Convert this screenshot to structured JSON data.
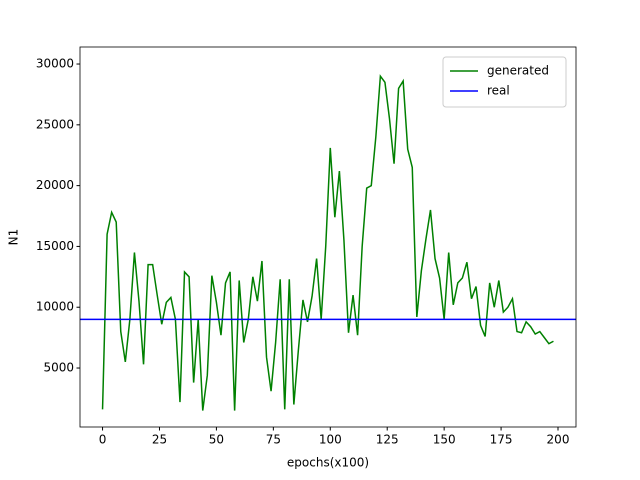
{
  "chart_data": {
    "type": "line",
    "xlabel": "epochs(x100)",
    "ylabel": "N1",
    "x": [
      0,
      2,
      4,
      6,
      8,
      10,
      12,
      14,
      16,
      18,
      20,
      22,
      24,
      26,
      28,
      30,
      32,
      34,
      36,
      38,
      40,
      42,
      44,
      46,
      48,
      50,
      52,
      54,
      56,
      58,
      60,
      62,
      64,
      66,
      68,
      70,
      72,
      74,
      76,
      78,
      80,
      82,
      84,
      86,
      88,
      90,
      92,
      94,
      96,
      98,
      100,
      102,
      104,
      106,
      108,
      110,
      112,
      114,
      116,
      118,
      120,
      122,
      124,
      126,
      128,
      130,
      132,
      134,
      136,
      138,
      140,
      142,
      144,
      146,
      148,
      150,
      152,
      154,
      156,
      158,
      160,
      162,
      164,
      166,
      168,
      170,
      172,
      174,
      176,
      178,
      180,
      182,
      184,
      186,
      188,
      190,
      192,
      194,
      196,
      198
    ],
    "series": [
      {
        "name": "generated",
        "color": "#008000",
        "values": [
          1600,
          16000,
          17800,
          17000,
          8000,
          5500,
          9000,
          14500,
          10500,
          5300,
          13500,
          13500,
          11000,
          8600,
          10400,
          10800,
          9000,
          2200,
          12900,
          12500,
          3800,
          9000,
          1500,
          4400,
          12600,
          10400,
          7700,
          12000,
          12900,
          1500,
          12200,
          7100,
          9000,
          12500,
          10500,
          13800,
          5900,
          3100,
          7100,
          12300,
          1600,
          12300,
          2000,
          6500,
          10600,
          8800,
          10900,
          14000,
          9000,
          15000,
          23100,
          17400,
          21200,
          15500,
          7900,
          11000,
          7700,
          15000,
          19800,
          20000,
          24000,
          29000,
          28500,
          25500,
          21800,
          28000,
          28600,
          23000,
          21500,
          9200,
          13000,
          15600,
          18000,
          14000,
          12400,
          9000,
          14500,
          10200,
          12000,
          12400,
          13700,
          10700,
          11700,
          8500,
          7600,
          12000,
          10000,
          12200,
          9600,
          10000,
          10700,
          8000,
          7900,
          8800,
          8400,
          7800,
          8000,
          7500,
          7000,
          7200
        ]
      }
    ],
    "reference_lines": [
      {
        "name": "real",
        "color": "#0000ff",
        "value": 9000
      }
    ],
    "xlim": [
      -9.9,
      207.9
    ],
    "xticks": [
      0,
      25,
      50,
      75,
      100,
      125,
      150,
      175,
      200
    ],
    "ylim": [
      150,
      31400
    ],
    "yticks": [
      5000,
      10000,
      15000,
      20000,
      25000,
      30000
    ],
    "legend": "upper right"
  }
}
